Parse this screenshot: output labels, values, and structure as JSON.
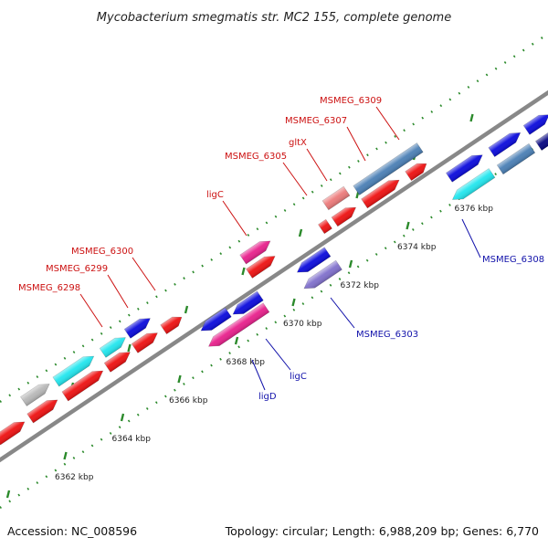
{
  "title": "Mycobacterium smegmatis str. MC2 155, complete genome",
  "footer": {
    "accession": "Accession: NC_008596",
    "summary": "Topology: circular; Length: 6,988,209 bp; Genes: 6,770"
  },
  "colors": {
    "red": "#ee1111",
    "blue": "#0a0adc",
    "dark_blue": "#060680",
    "steel_blue": "#4a7fb5",
    "cyan": "#22e6ee",
    "pink": "#e8208c",
    "salmon": "#ec7a7a",
    "lavender": "#8070cc",
    "gray": "#b8b8b8",
    "backbone": "#888888",
    "tick": "#2b8a2b",
    "label_forward": "#cc1111",
    "label_reverse": "#1111aa"
  },
  "ticks": [
    {
      "kbp": 6362,
      "label": "6362 kbp"
    },
    {
      "kbp": 6364,
      "label": "6364 kbp"
    },
    {
      "kbp": 6366,
      "label": "6366 kbp"
    },
    {
      "kbp": 6368,
      "label": "6368 kbp"
    },
    {
      "kbp": 6370,
      "label": "6370 kbp"
    },
    {
      "kbp": 6372,
      "label": "6372 kbp"
    },
    {
      "kbp": 6374,
      "label": "6374 kbp"
    },
    {
      "kbp": 6376,
      "label": "6376 kbp"
    }
  ],
  "labels": [
    {
      "text": "MSMEG_6298",
      "strand": "forward"
    },
    {
      "text": "MSMEG_6299",
      "strand": "forward"
    },
    {
      "text": "MSMEG_6300",
      "strand": "forward"
    },
    {
      "text": "ligC",
      "strand": "forward"
    },
    {
      "text": "MSMEG_6305",
      "strand": "forward"
    },
    {
      "text": "gltX",
      "strand": "forward"
    },
    {
      "text": "MSMEG_6307",
      "strand": "forward"
    },
    {
      "text": "MSMEG_6309",
      "strand": "forward"
    },
    {
      "text": "ligD",
      "strand": "reverse"
    },
    {
      "text": "ligC",
      "strand": "reverse"
    },
    {
      "text": "MSMEG_6303",
      "strand": "reverse"
    },
    {
      "text": "MSMEG_6308",
      "strand": "reverse"
    }
  ]
}
